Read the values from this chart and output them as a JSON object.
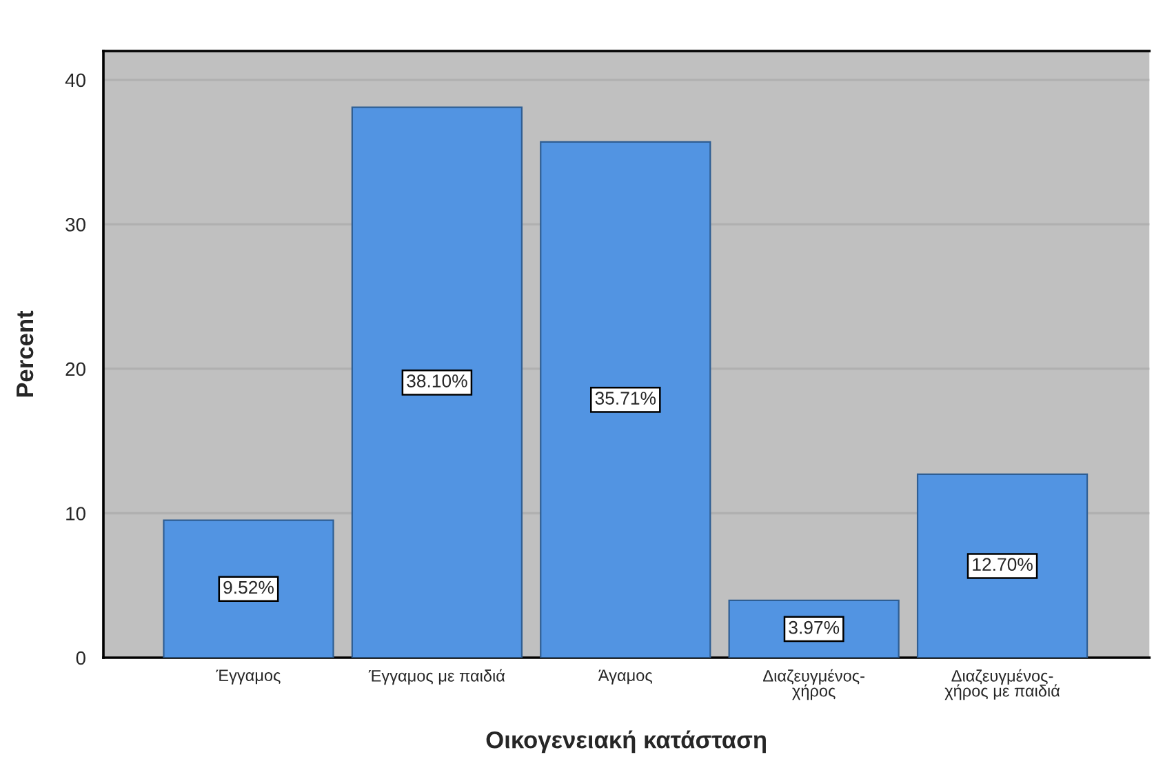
{
  "chart_data": {
    "type": "bar",
    "xlabel": "Οικογενειακή κατάσταση",
    "ylabel": "Percent",
    "categories": [
      "Έγγαμος",
      "Έγγαμος με παιδιά",
      "Άγαμος",
      "Διαζευγμένος-χήρος",
      "Διαζευγμένος-χήρος με παιδιά"
    ],
    "values": [
      9.52,
      38.1,
      35.71,
      3.97,
      12.7
    ],
    "value_labels": [
      "9.52%",
      "38.10%",
      "35.71%",
      "3.97%",
      "12.70%"
    ],
    "color": "#5294e2",
    "ylim": [
      0,
      42
    ],
    "yticks": [
      0,
      10,
      20,
      30,
      40
    ],
    "grid": "y"
  }
}
